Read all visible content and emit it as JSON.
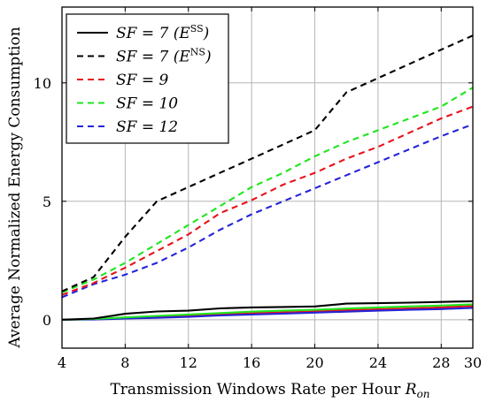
{
  "chart_data": {
    "type": "line",
    "title": "",
    "xlabel": "Transmission Windows Rate per Hour R_on",
    "xlabel_main": "Transmission Windows Rate per Hour ",
    "xlabel_var": "R",
    "xlabel_sub": "on",
    "ylabel": "Average Normalized Energy Consumption",
    "xlim": [
      4,
      30
    ],
    "ylim": [
      -1.2,
      13.2
    ],
    "xticks": [
      4,
      8,
      12,
      16,
      20,
      24,
      28,
      30
    ],
    "yticks": [
      0,
      5,
      10
    ],
    "grid": true,
    "legend_position": "top-left",
    "series": [
      {
        "name": "SF = 7 (E^SS)",
        "legend_label": "SF = 7 (ESS)",
        "legend_main": "SF = 7 (E",
        "legend_sup": "SS",
        "legend_close": ")",
        "color": "#000000",
        "dash": "solid",
        "x": [
          4,
          6,
          8,
          10,
          12,
          14,
          16,
          18,
          20,
          22,
          24,
          26,
          28,
          30
        ],
        "y": [
          0.0,
          0.05,
          0.25,
          0.35,
          0.38,
          0.48,
          0.52,
          0.54,
          0.56,
          0.68,
          0.7,
          0.72,
          0.75,
          0.78
        ]
      },
      {
        "name": "SF = 7 (E^NS)",
        "legend_label": "SF = 7 (ENS)",
        "legend_main": "SF = 7 (E",
        "legend_sup": "NS",
        "legend_close": ")",
        "color": "#000000",
        "dash": "dashed",
        "x": [
          4,
          6,
          8,
          10,
          12,
          14,
          16,
          18,
          20,
          22,
          24,
          26,
          28,
          30
        ],
        "y": [
          1.2,
          1.8,
          3.5,
          5.0,
          5.6,
          6.2,
          6.8,
          7.4,
          8.0,
          9.6,
          10.2,
          10.8,
          11.4,
          12.0
        ]
      },
      {
        "name": "SF = 9",
        "legend_label": "SF = 9",
        "color": "#e8131b",
        "dash": "dashed",
        "x": [
          4,
          6,
          8,
          10,
          12,
          14,
          16,
          18,
          20,
          22,
          24,
          26,
          28,
          30
        ],
        "y": [
          1.05,
          1.55,
          2.2,
          2.9,
          3.6,
          4.5,
          5.05,
          5.7,
          6.2,
          6.8,
          7.3,
          7.9,
          8.5,
          9.0
        ],
        "solid_y": [
          0.0,
          0.02,
          0.08,
          0.12,
          0.16,
          0.22,
          0.27,
          0.31,
          0.35,
          0.4,
          0.44,
          0.48,
          0.52,
          0.58
        ]
      },
      {
        "name": "SF = 10",
        "legend_label": "SF = 10",
        "color": "#1ee61e",
        "dash": "dashed",
        "x": [
          4,
          6,
          8,
          10,
          12,
          14,
          16,
          18,
          20,
          22,
          24,
          26,
          28,
          30
        ],
        "y": [
          1.15,
          1.7,
          2.4,
          3.2,
          4.0,
          4.8,
          5.6,
          6.2,
          6.9,
          7.5,
          8.0,
          8.5,
          9.0,
          9.8
        ],
        "solid_y": [
          0.0,
          0.03,
          0.1,
          0.16,
          0.22,
          0.28,
          0.34,
          0.38,
          0.42,
          0.47,
          0.52,
          0.56,
          0.6,
          0.65
        ]
      },
      {
        "name": "SF = 12",
        "legend_label": "SF = 12",
        "color": "#2424d8",
        "dash": "dashed",
        "x": [
          4,
          6,
          8,
          10,
          12,
          14,
          16,
          18,
          20,
          22,
          24,
          26,
          28,
          30
        ],
        "y": [
          0.95,
          1.5,
          1.9,
          2.4,
          3.05,
          3.8,
          4.45,
          5.0,
          5.55,
          6.1,
          6.65,
          7.2,
          7.75,
          8.25
        ],
        "solid_y": [
          0.0,
          0.01,
          0.05,
          0.08,
          0.12,
          0.18,
          0.22,
          0.26,
          0.3,
          0.34,
          0.38,
          0.42,
          0.45,
          0.5
        ]
      }
    ]
  }
}
